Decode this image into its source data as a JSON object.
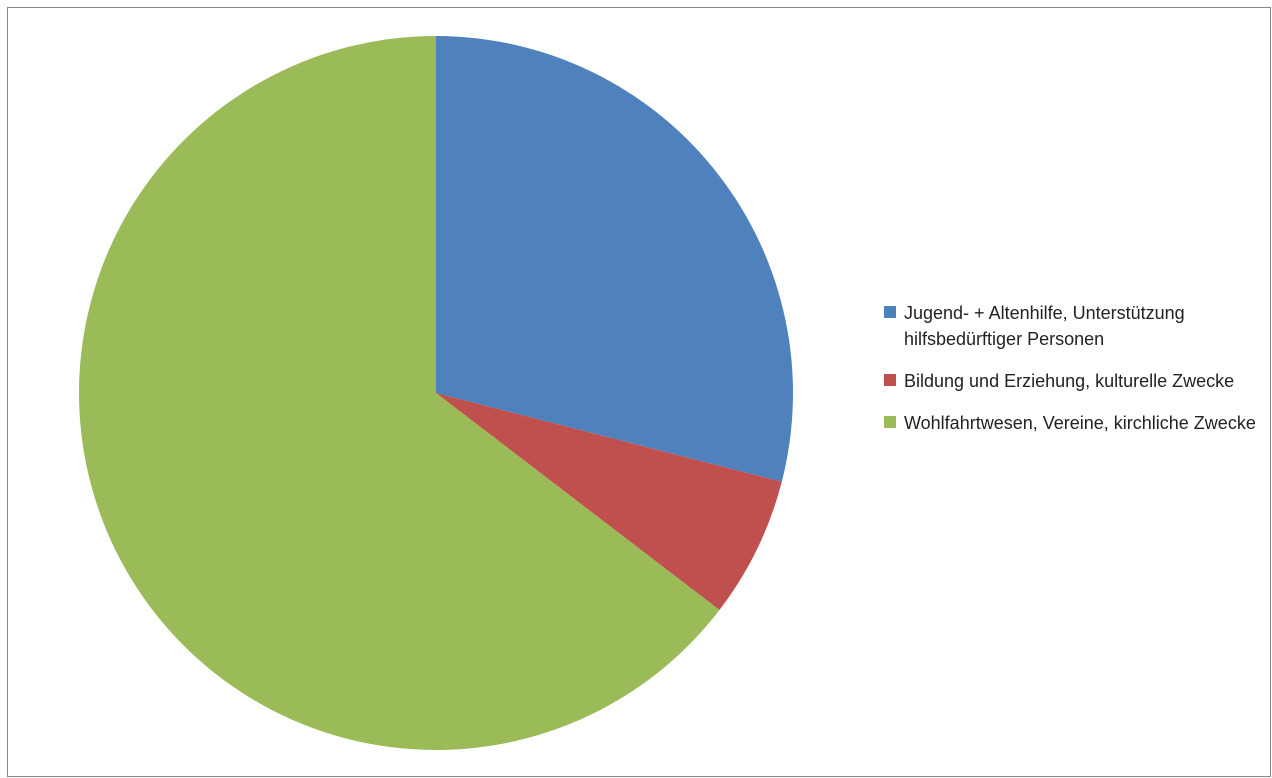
{
  "chart_data": {
    "type": "pie",
    "title": "",
    "legend_position": "right",
    "slices": [
      {
        "label": "Jugend- + Altenhilfe, Unterstützung hilfsbedürftiger Personen",
        "value": 29.0,
        "color": "#4F81BD"
      },
      {
        "label": "Bildung und Erziehung, kulturelle Zwecke",
        "value": 6.4,
        "color": "#C0504D"
      },
      {
        "label": "Wohlfahrtwesen, Vereine, kirchliche Zwecke",
        "value": 64.6,
        "color": "#9BBB59"
      }
    ]
  }
}
